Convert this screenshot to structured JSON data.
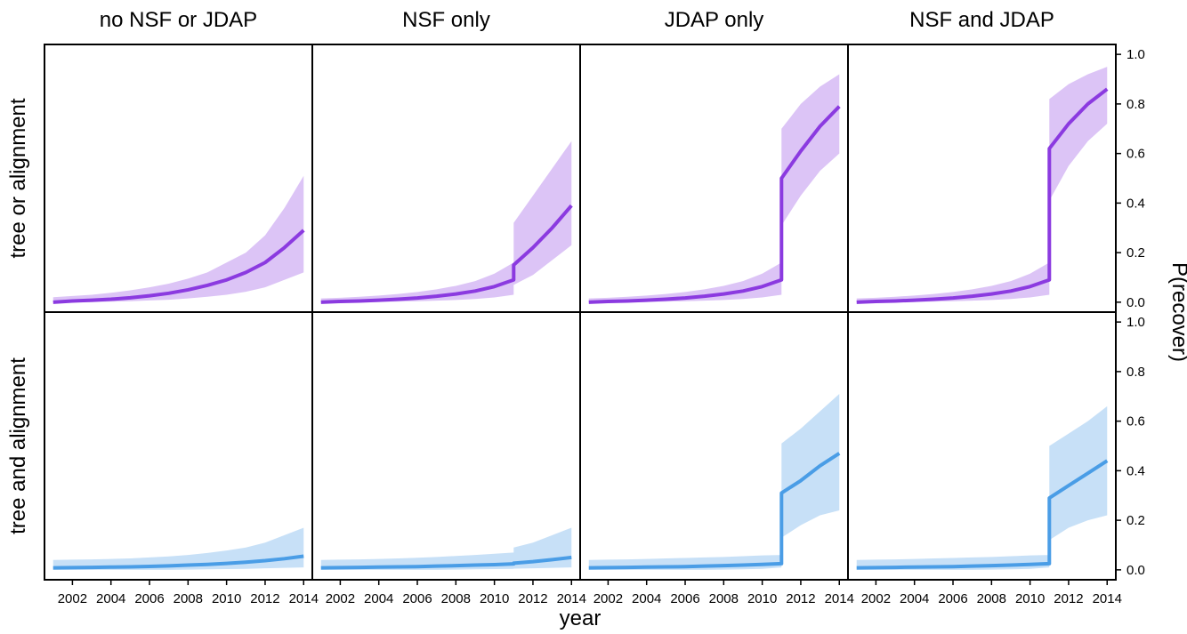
{
  "chart_data": {
    "type": "line",
    "columns": [
      "no NSF or JDAP",
      "NSF only",
      "JDAP only",
      "NSF and JDAP"
    ],
    "xlabel": "year",
    "ylabel": "P(recover)",
    "x": [
      2001,
      2002,
      2003,
      2004,
      2005,
      2006,
      2007,
      2008,
      2009,
      2010,
      2011,
      2011,
      2012,
      2013,
      2014
    ],
    "xlim": [
      2000.55,
      2014.45
    ],
    "xticks": [
      2002,
      2004,
      2006,
      2008,
      2010,
      2012,
      2014
    ],
    "ylim": [
      -0.04,
      1.04
    ],
    "yticks": [
      {
        "value": 0,
        "label": "0.0"
      },
      {
        "value": 0.2,
        "label": "0.2"
      },
      {
        "value": 0.4,
        "label": "0.4"
      },
      {
        "value": 0.6,
        "label": "0.6"
      },
      {
        "value": 0.8,
        "label": "0.8"
      },
      {
        "value": 1,
        "label": "1.0"
      }
    ],
    "rows": [
      {
        "label": "tree or alignment",
        "color": "#8b3ae0",
        "band_color": "#dcc4f6",
        "panels": [
          {
            "values": [
              0.0,
              0.005,
              0.008,
              0.012,
              0.018,
              0.026,
              0.036,
              0.05,
              0.068,
              0.09,
              0.12,
              0.12,
              0.16,
              0.22,
              0.29
            ],
            "lower": [
              0.0,
              0.0,
              0.0,
              0.002,
              0.004,
              0.007,
              0.01,
              0.015,
              0.022,
              0.03,
              0.042,
              0.042,
              0.06,
              0.09,
              0.12
            ],
            "upper": [
              0.02,
              0.025,
              0.03,
              0.038,
              0.048,
              0.06,
              0.075,
              0.095,
              0.12,
              0.16,
              0.2,
              0.2,
              0.27,
              0.38,
              0.51
            ]
          },
          {
            "values": [
              0.0,
              0.003,
              0.005,
              0.008,
              0.012,
              0.017,
              0.024,
              0.033,
              0.045,
              0.063,
              0.09,
              0.15,
              0.22,
              0.3,
              0.39
            ],
            "lower": [
              0.0,
              0.0,
              0.0,
              0.001,
              0.002,
              0.004,
              0.006,
              0.009,
              0.013,
              0.019,
              0.03,
              0.07,
              0.11,
              0.17,
              0.23
            ],
            "upper": [
              0.015,
              0.018,
              0.022,
              0.027,
              0.033,
              0.041,
              0.052,
              0.066,
              0.085,
              0.115,
              0.16,
              0.32,
              0.43,
              0.54,
              0.65
            ]
          },
          {
            "values": [
              0.0,
              0.003,
              0.005,
              0.008,
              0.012,
              0.017,
              0.024,
              0.033,
              0.045,
              0.063,
              0.09,
              0.5,
              0.61,
              0.71,
              0.79
            ],
            "lower": [
              0.0,
              0.0,
              0.0,
              0.001,
              0.002,
              0.004,
              0.006,
              0.009,
              0.013,
              0.019,
              0.03,
              0.31,
              0.43,
              0.53,
              0.6
            ],
            "upper": [
              0.015,
              0.018,
              0.022,
              0.027,
              0.033,
              0.041,
              0.052,
              0.066,
              0.085,
              0.115,
              0.16,
              0.7,
              0.8,
              0.87,
              0.92
            ]
          },
          {
            "values": [
              0.0,
              0.003,
              0.005,
              0.008,
              0.012,
              0.017,
              0.024,
              0.033,
              0.045,
              0.063,
              0.09,
              0.62,
              0.72,
              0.8,
              0.86
            ],
            "lower": [
              0.0,
              0.0,
              0.0,
              0.001,
              0.002,
              0.004,
              0.006,
              0.009,
              0.013,
              0.019,
              0.03,
              0.41,
              0.55,
              0.65,
              0.72
            ],
            "upper": [
              0.015,
              0.018,
              0.022,
              0.027,
              0.033,
              0.041,
              0.052,
              0.066,
              0.085,
              0.115,
              0.16,
              0.82,
              0.88,
              0.92,
              0.95
            ]
          }
        ]
      },
      {
        "label": "tree and alignment",
        "color": "#4a9de6",
        "band_color": "#c7e0f7",
        "panels": [
          {
            "values": [
              0.008,
              0.009,
              0.01,
              0.011,
              0.012,
              0.014,
              0.016,
              0.019,
              0.022,
              0.026,
              0.031,
              0.031,
              0.037,
              0.045,
              0.055
            ],
            "lower": [
              0.0,
              0.0,
              0.0,
              0.0,
              0.0,
              0.0,
              0.0,
              0.001,
              0.002,
              0.003,
              0.004,
              0.004,
              0.006,
              0.008,
              0.01
            ],
            "upper": [
              0.04,
              0.041,
              0.042,
              0.044,
              0.046,
              0.05,
              0.054,
              0.06,
              0.068,
              0.078,
              0.09,
              0.09,
              0.11,
              0.14,
              0.17
            ]
          },
          {
            "values": [
              0.008,
              0.009,
              0.01,
              0.011,
              0.012,
              0.013,
              0.015,
              0.017,
              0.019,
              0.021,
              0.024,
              0.027,
              0.033,
              0.041,
              0.05
            ],
            "lower": [
              0.0,
              0.0,
              0.0,
              0.0,
              0.0,
              0.0,
              0.0,
              0.001,
              0.002,
              0.003,
              0.004,
              0.005,
              0.006,
              0.008,
              0.01
            ],
            "upper": [
              0.04,
              0.041,
              0.042,
              0.044,
              0.046,
              0.049,
              0.052,
              0.056,
              0.06,
              0.065,
              0.07,
              0.09,
              0.11,
              0.14,
              0.17
            ]
          },
          {
            "values": [
              0.008,
              0.009,
              0.01,
              0.011,
              0.012,
              0.013,
              0.015,
              0.017,
              0.019,
              0.022,
              0.025,
              0.31,
              0.36,
              0.42,
              0.47
            ],
            "lower": [
              0.0,
              0.0,
              0.0,
              0.0,
              0.0,
              0.0,
              0.0,
              0.001,
              0.002,
              0.004,
              0.01,
              0.13,
              0.18,
              0.22,
              0.24
            ],
            "upper": [
              0.04,
              0.041,
              0.042,
              0.044,
              0.046,
              0.048,
              0.05,
              0.052,
              0.055,
              0.058,
              0.06,
              0.51,
              0.57,
              0.64,
              0.71
            ]
          },
          {
            "values": [
              0.008,
              0.009,
              0.01,
              0.011,
              0.012,
              0.013,
              0.015,
              0.017,
              0.019,
              0.022,
              0.025,
              0.29,
              0.34,
              0.39,
              0.44
            ],
            "lower": [
              0.0,
              0.0,
              0.0,
              0.0,
              0.0,
              0.0,
              0.0,
              0.001,
              0.002,
              0.004,
              0.01,
              0.12,
              0.17,
              0.2,
              0.22
            ],
            "upper": [
              0.04,
              0.041,
              0.042,
              0.044,
              0.046,
              0.048,
              0.05,
              0.052,
              0.055,
              0.058,
              0.06,
              0.5,
              0.55,
              0.6,
              0.66
            ]
          }
        ]
      }
    ]
  }
}
